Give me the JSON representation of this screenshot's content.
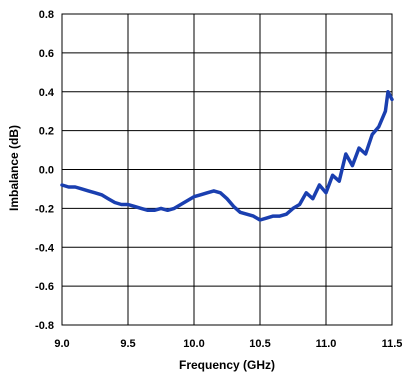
{
  "chart_data": {
    "type": "line",
    "title": "",
    "xlabel": "Frequency (GHz)",
    "ylabel": "Imbalance (dB)",
    "xlim": [
      9.0,
      11.5
    ],
    "ylim": [
      -0.8,
      0.8
    ],
    "x_ticks": [
      "9.0",
      "9.5",
      "10.0",
      "10.5",
      "11.0",
      "11.5"
    ],
    "y_ticks": [
      "0.8",
      "0.6",
      "0.4",
      "0.2",
      "0.0",
      "-0.2",
      "-0.4",
      "-0.6",
      "-0.8"
    ],
    "grid": true,
    "legend": "none",
    "series": [
      {
        "color": "#1a3fb0",
        "x": [
          9.0,
          9.05,
          9.1,
          9.15,
          9.2,
          9.25,
          9.3,
          9.35,
          9.4,
          9.45,
          9.5,
          9.55,
          9.6,
          9.65,
          9.7,
          9.75,
          9.8,
          9.85,
          9.9,
          9.95,
          10.0,
          10.05,
          10.1,
          10.15,
          10.2,
          10.25,
          10.3,
          10.35,
          10.4,
          10.45,
          10.5,
          10.55,
          10.6,
          10.65,
          10.7,
          10.75,
          10.8,
          10.85,
          10.9,
          10.95,
          11.0,
          11.05,
          11.1,
          11.15,
          11.2,
          11.25,
          11.3,
          11.35,
          11.4,
          11.45,
          11.47,
          11.5
        ],
        "y": [
          -0.08,
          -0.09,
          -0.09,
          -0.1,
          -0.11,
          -0.12,
          -0.13,
          -0.15,
          -0.17,
          -0.18,
          -0.18,
          -0.19,
          -0.2,
          -0.21,
          -0.21,
          -0.2,
          -0.21,
          -0.2,
          -0.18,
          -0.16,
          -0.14,
          -0.13,
          -0.12,
          -0.11,
          -0.12,
          -0.15,
          -0.19,
          -0.22,
          -0.23,
          -0.24,
          -0.26,
          -0.25,
          -0.24,
          -0.24,
          -0.23,
          -0.2,
          -0.18,
          -0.12,
          -0.15,
          -0.08,
          -0.12,
          -0.03,
          -0.06,
          0.08,
          0.02,
          0.11,
          0.08,
          0.18,
          0.22,
          0.3,
          0.4,
          0.36
        ]
      }
    ]
  }
}
